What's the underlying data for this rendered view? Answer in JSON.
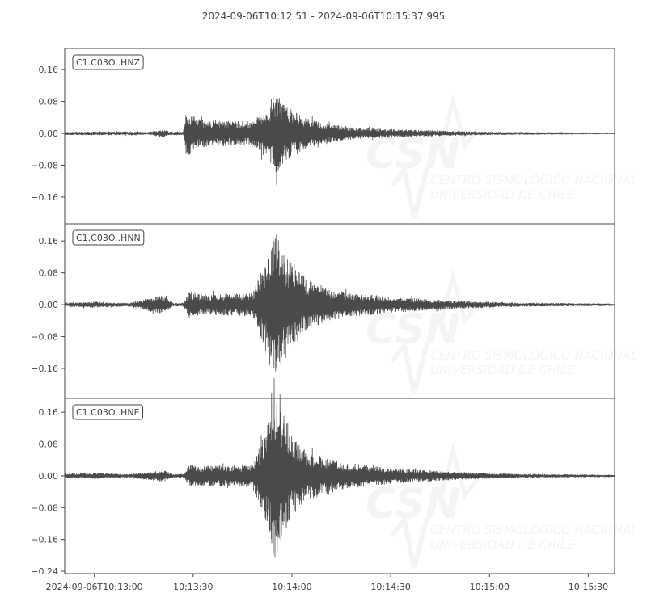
{
  "title": "2024-09-06T10:12:51  -  2024-09-06T10:15:37.995",
  "colors": {
    "trace": "#4a4a4a",
    "axes": "#444444",
    "watermark": "#f4f4f4"
  },
  "watermark": {
    "logo": "CSN",
    "line1": "CENTRO SISMOLÓGICO NACIONAL",
    "line2": "UNIVERSIDAD DE CHILE"
  },
  "chart_data": {
    "type": "line",
    "start_time": "2024-09-06T10:12:51",
    "end_time": "2024-09-06T10:15:37.995",
    "x_ticks": [
      "2024-09-06T10:13:00",
      "10:13:30",
      "10:14:00",
      "10:14:30",
      "10:15:00",
      "10:15:30"
    ],
    "x_tick_times": [
      "10:13:00",
      "10:13:30",
      "10:14:00",
      "10:14:30",
      "10:15:00",
      "10:15:30"
    ],
    "traces": [
      {
        "name": "C1.C03O..HNZ",
        "ylim": [
          -0.227,
          0.213
        ],
        "y_ticks": [
          0.16,
          0.08,
          0.0,
          -0.08,
          -0.16
        ],
        "y_tick_labels": [
          "0.16",
          "0.08",
          "0.00",
          "−0.08",
          "−0.16"
        ],
        "envelope": [
          [
            "10:12:51",
            0.004
          ],
          [
            "10:13:12",
            0.005
          ],
          [
            "10:13:16",
            0.003
          ],
          [
            "10:13:21",
            0.01
          ],
          [
            "10:13:23",
            0.004
          ],
          [
            "10:13:27",
            0.005
          ],
          [
            "10:13:28",
            0.06
          ],
          [
            "10:13:32",
            0.035
          ],
          [
            "10:13:48",
            0.03
          ],
          [
            "10:13:52",
            0.06
          ],
          [
            "10:13:55",
            0.105
          ],
          [
            "10:13:58",
            0.07
          ],
          [
            "10:14:03",
            0.045
          ],
          [
            "10:14:10",
            0.025
          ],
          [
            "10:14:20",
            0.014
          ],
          [
            "10:14:40",
            0.008
          ],
          [
            "10:15:00",
            0.004
          ],
          [
            "10:15:38",
            0.002
          ]
        ]
      },
      {
        "name": "C1.C03O..HNN",
        "ylim": [
          -0.235,
          0.203
        ],
        "y_ticks": [
          0.16,
          0.08,
          0.0,
          -0.08,
          -0.16
        ],
        "y_tick_labels": [
          "0.16",
          "0.08",
          "0.00",
          "−0.08",
          "−0.16"
        ],
        "envelope": [
          [
            "10:12:51",
            0.005
          ],
          [
            "10:13:00",
            0.008
          ],
          [
            "10:13:10",
            0.004
          ],
          [
            "10:13:21",
            0.025
          ],
          [
            "10:13:24",
            0.004
          ],
          [
            "10:13:27",
            0.005
          ],
          [
            "10:13:29",
            0.035
          ],
          [
            "10:13:33",
            0.025
          ],
          [
            "10:13:48",
            0.03
          ],
          [
            "10:13:51",
            0.09
          ],
          [
            "10:13:55",
            0.2
          ],
          [
            "10:13:58",
            0.12
          ],
          [
            "10:14:00",
            0.11
          ],
          [
            "10:14:05",
            0.06
          ],
          [
            "10:14:15",
            0.035
          ],
          [
            "10:14:30",
            0.02
          ],
          [
            "10:14:50",
            0.01
          ],
          [
            "10:15:10",
            0.005
          ],
          [
            "10:15:38",
            0.003
          ]
        ]
      },
      {
        "name": "C1.C03O..HNE",
        "ylim": [
          -0.246,
          0.195
        ],
        "y_ticks": [
          0.16,
          0.08,
          0.0,
          -0.08,
          -0.16,
          -0.24
        ],
        "y_tick_labels": [
          "0.16",
          "0.08",
          "0.00",
          "−0.08",
          "−0.16",
          "−0.24"
        ],
        "envelope": [
          [
            "10:12:51",
            0.006
          ],
          [
            "10:13:00",
            0.008
          ],
          [
            "10:13:10",
            0.004
          ],
          [
            "10:13:21",
            0.015
          ],
          [
            "10:13:24",
            0.004
          ],
          [
            "10:13:27",
            0.005
          ],
          [
            "10:13:29",
            0.03
          ],
          [
            "10:13:33",
            0.025
          ],
          [
            "10:13:48",
            0.03
          ],
          [
            "10:13:51",
            0.09
          ],
          [
            "10:13:55",
            0.22
          ],
          [
            "10:13:58",
            0.14
          ],
          [
            "10:14:00",
            0.1
          ],
          [
            "10:14:05",
            0.06
          ],
          [
            "10:14:15",
            0.035
          ],
          [
            "10:14:30",
            0.02
          ],
          [
            "10:14:50",
            0.01
          ],
          [
            "10:15:10",
            0.005
          ],
          [
            "10:15:38",
            0.003
          ]
        ]
      }
    ]
  }
}
